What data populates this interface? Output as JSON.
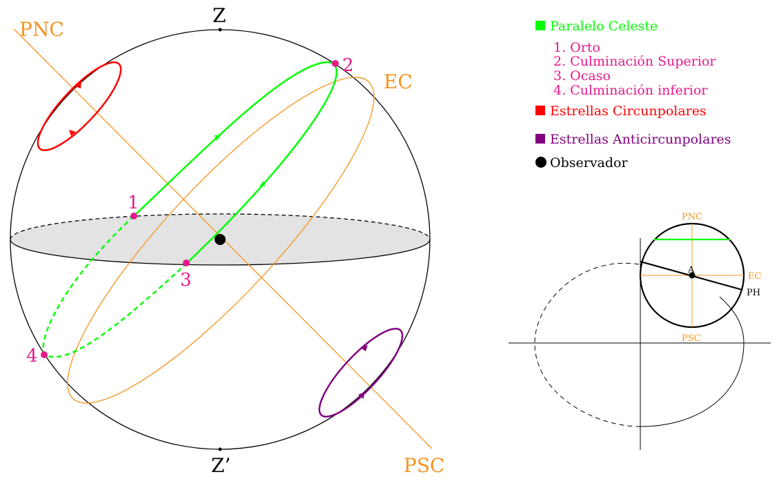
{
  "sphere": {
    "zenith_label": "Z",
    "nadir_label": "Z’",
    "pnc_label": "PNC",
    "psc_label": "PSC",
    "ec_label": "EC",
    "points": [
      {
        "num": "1",
        "label": "1"
      },
      {
        "num": "2",
        "label": "2"
      },
      {
        "num": "3",
        "label": "3"
      },
      {
        "num": "4",
        "label": "4"
      }
    ]
  },
  "legend": {
    "paralelo": "Paralelo Celeste",
    "events": [
      "1. Orto",
      "2. Culminación Superior",
      "3. Ocaso",
      "4. Culminación inferior"
    ],
    "circumpolar": "Estrellas Circunpolares",
    "anticircumpolar": "Estrellas Anticircunpolares",
    "observer": "Observador"
  },
  "inset": {
    "pnc_label": "PNC",
    "psc_label": "PSC",
    "ec_label": "EC",
    "ph_label": "PH",
    "a_label": "A"
  },
  "colors": {
    "orange": "#f7941d",
    "green": "#00ff00",
    "magenta": "#e6198c",
    "red": "#ff0000",
    "purple": "#800080",
    "black": "#000000",
    "horizon_fill": "#e3e3e3"
  }
}
